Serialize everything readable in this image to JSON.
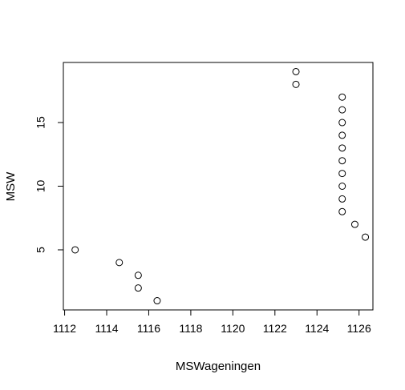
{
  "chart_data": {
    "type": "scatter",
    "title": "",
    "xlabel": "MSWageningen",
    "ylabel": "MSW",
    "xlim": [
      1111.94,
      1126.66
    ],
    "ylim": [
      0.28,
      19.72
    ],
    "x_ticks": [
      1112,
      1114,
      1116,
      1118,
      1120,
      1122,
      1124,
      1126
    ],
    "y_ticks": [
      5,
      10,
      15
    ],
    "grid": false,
    "legend": "none",
    "point_style": "open-circle",
    "points": [
      {
        "x": 1116.4,
        "y": 1
      },
      {
        "x": 1115.5,
        "y": 2
      },
      {
        "x": 1115.5,
        "y": 3
      },
      {
        "x": 1114.6,
        "y": 4
      },
      {
        "x": 1112.5,
        "y": 5
      },
      {
        "x": 1126.3,
        "y": 6
      },
      {
        "x": 1125.8,
        "y": 7
      },
      {
        "x": 1125.2,
        "y": 8
      },
      {
        "x": 1125.2,
        "y": 9
      },
      {
        "x": 1125.2,
        "y": 10
      },
      {
        "x": 1125.2,
        "y": 11
      },
      {
        "x": 1125.2,
        "y": 12
      },
      {
        "x": 1125.2,
        "y": 13
      },
      {
        "x": 1125.2,
        "y": 14
      },
      {
        "x": 1125.2,
        "y": 15
      },
      {
        "x": 1125.2,
        "y": 16
      },
      {
        "x": 1125.2,
        "y": 17
      },
      {
        "x": 1123.0,
        "y": 18
      },
      {
        "x": 1123.0,
        "y": 19
      }
    ]
  }
}
